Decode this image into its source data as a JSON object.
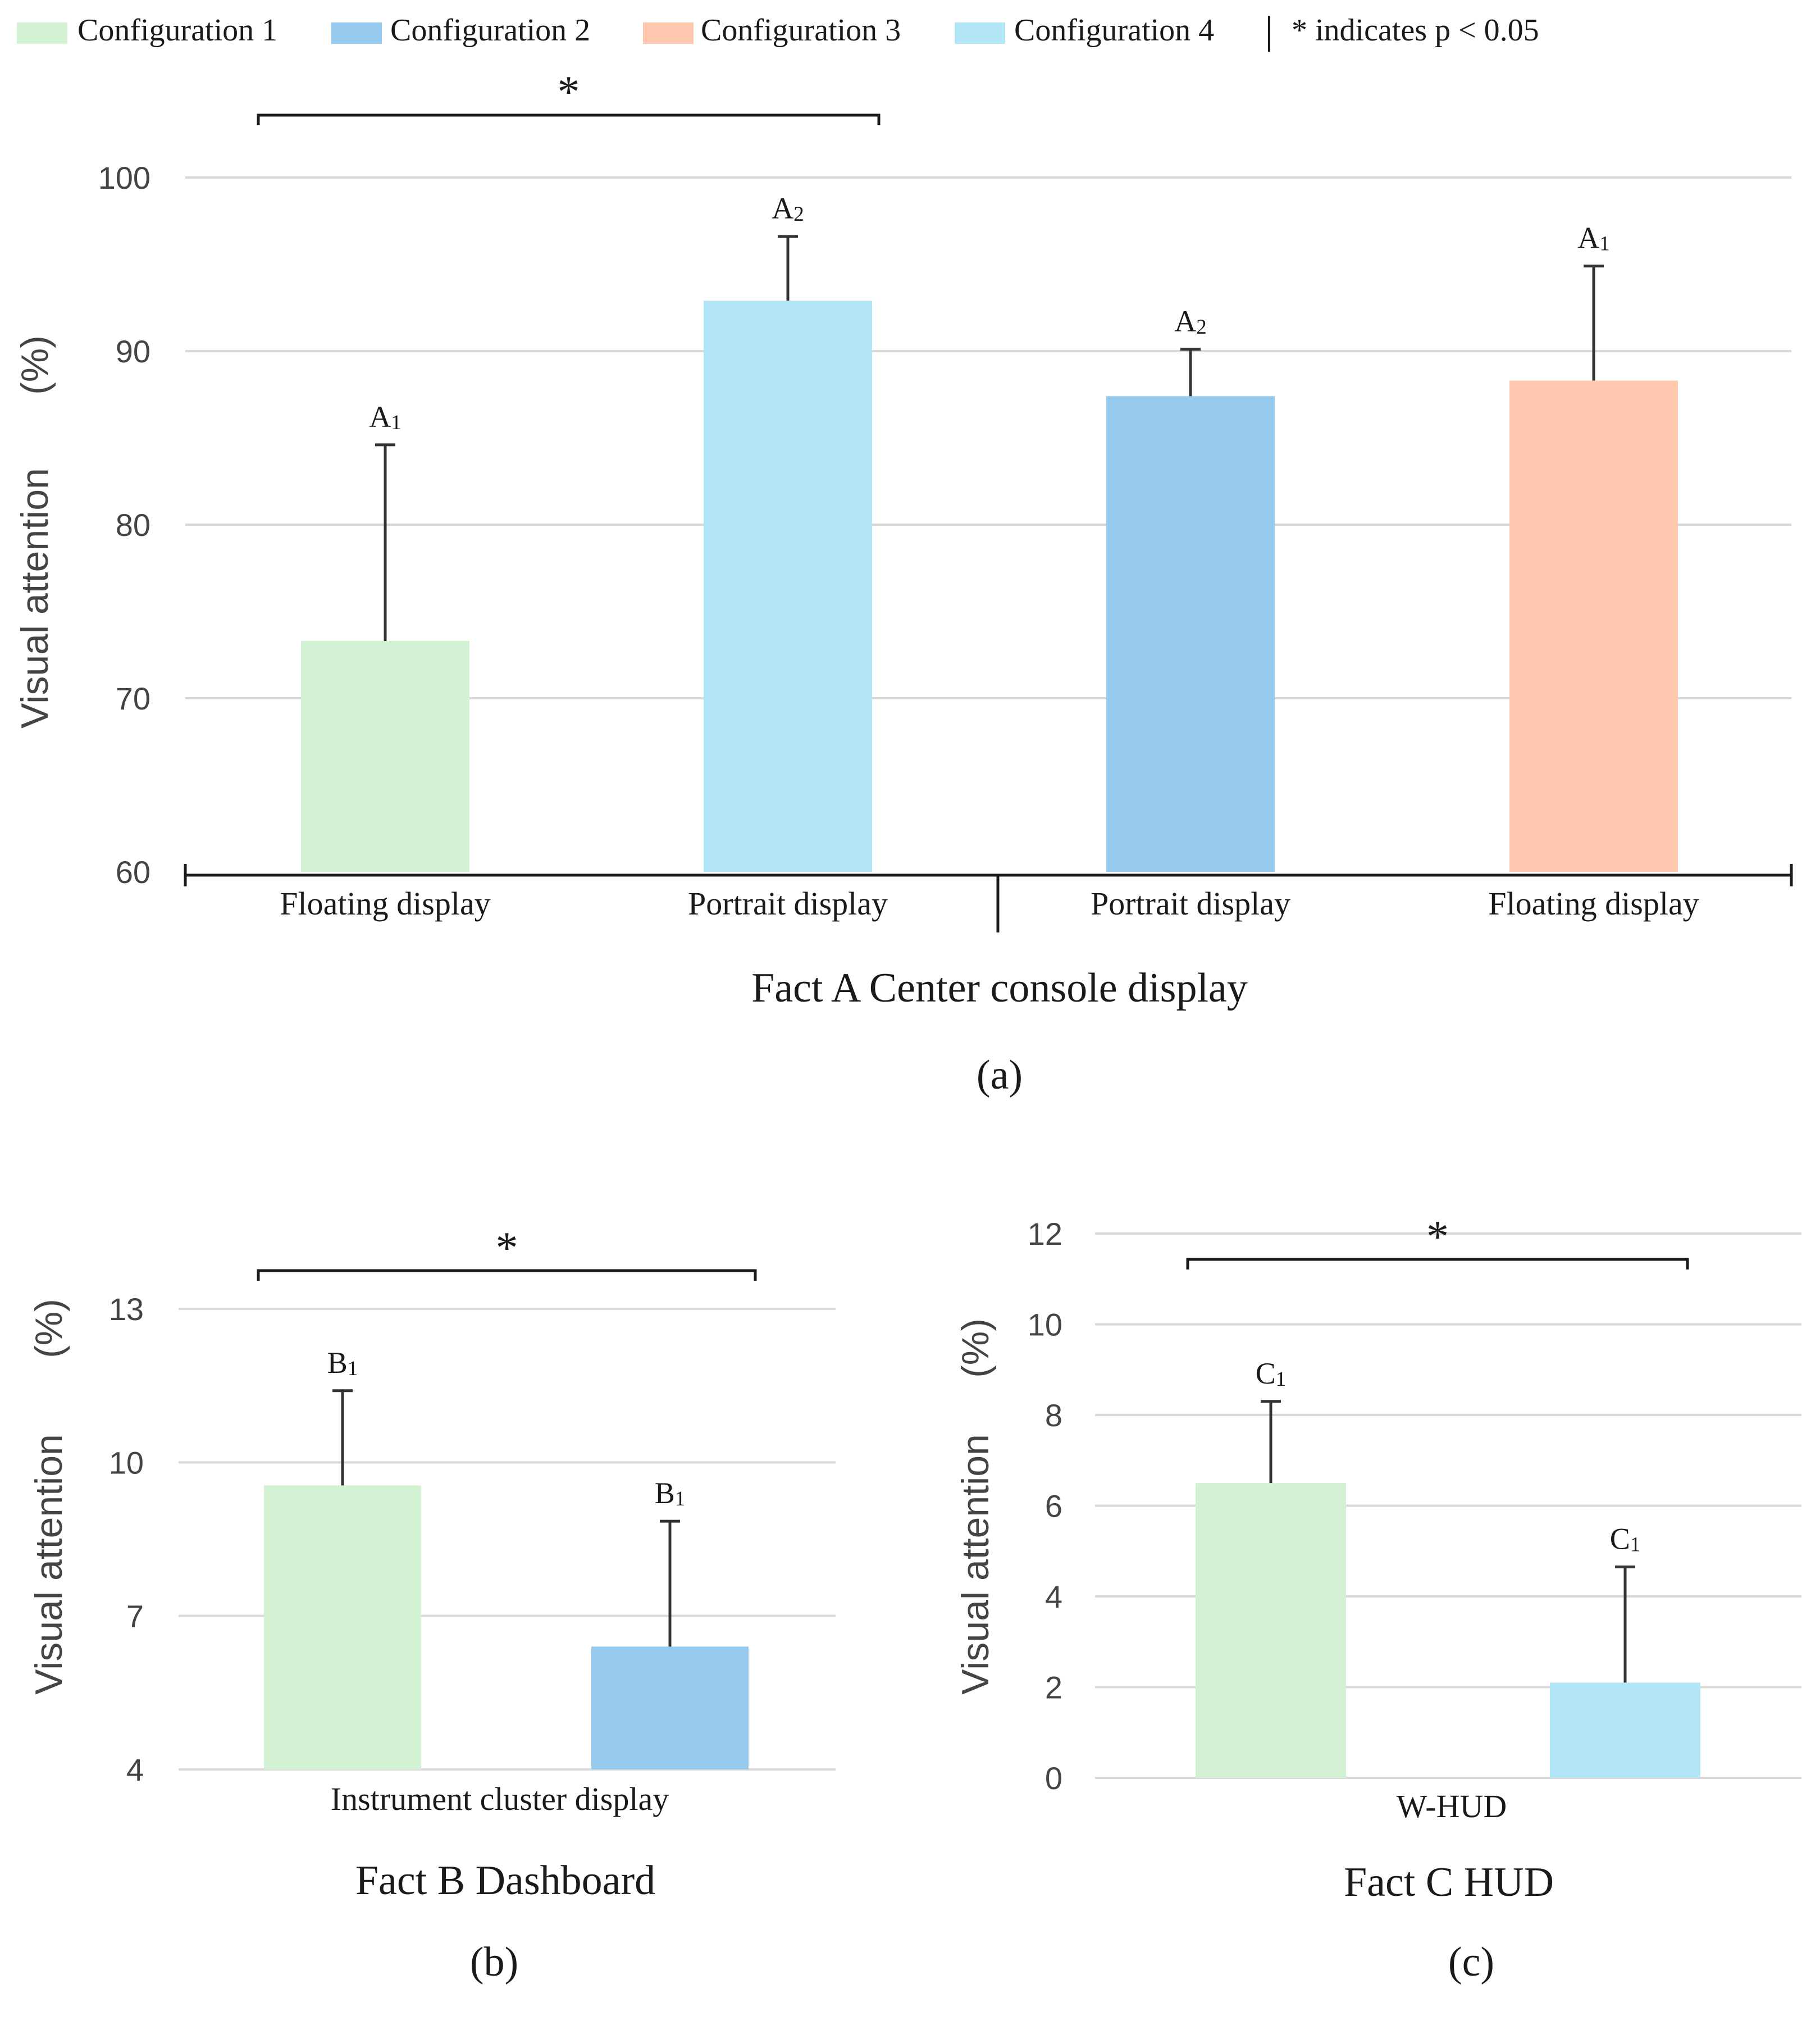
{
  "legend": {
    "items": [
      {
        "label": "Configuration 1",
        "color": "#d3f2d3"
      },
      {
        "label": "Configuration 2",
        "color": "#95c9ee"
      },
      {
        "label": "Configuration 3",
        "color": "#ffc7ad"
      },
      {
        "label": "Configuration 4",
        "color": "#b2e5f6"
      }
    ],
    "significance_note": "* indicates p < 0.05"
  },
  "colors": {
    "text": "#1a1a1a",
    "axis_tick_text": "#444444",
    "grid": "#d9d9d9",
    "axis": "#1a1a1a",
    "error_bar": "#333333"
  },
  "chart_data": [
    {
      "id": "a",
      "type": "bar",
      "panel_label": "(a)",
      "title": "Fact A  Center console display",
      "ylabel": "Visual attention",
      "ylabel_unit": "(%)",
      "ylim": [
        60,
        100
      ],
      "yticks": [
        60,
        70,
        80,
        90,
        100
      ],
      "categories": [
        "Floating display",
        "Portrait display",
        "Portrait display",
        "Floating display"
      ],
      "values": [
        73.3,
        92.9,
        87.4,
        88.3
      ],
      "errors": [
        11.3,
        3.7,
        2.7,
        6.6
      ],
      "bar_configs": [
        "Configuration 1",
        "Configuration 4",
        "Configuration 2",
        "Configuration 3"
      ],
      "bar_letters": [
        "A1",
        "A2",
        "A2",
        "A1"
      ],
      "significance": {
        "from_bar": 0,
        "to_bar": 1,
        "mark": "*"
      },
      "grid": true
    },
    {
      "id": "b",
      "type": "bar",
      "panel_label": "(b)",
      "title": "Fact B Dashboard",
      "xlabel": "Instrument cluster display",
      "ylabel": "Visual attention",
      "ylabel_unit": "(%)",
      "ylim": [
        4,
        13
      ],
      "yticks": [
        4,
        7,
        10,
        13
      ],
      "values": [
        9.55,
        6.4
      ],
      "errors": [
        1.85,
        2.45
      ],
      "bar_configs": [
        "Configuration 1",
        "Configuration 2"
      ],
      "bar_letters": [
        "B1",
        "B1"
      ],
      "significance": {
        "from_bar": 0,
        "to_bar": 1,
        "mark": "*"
      },
      "grid": true
    },
    {
      "id": "c",
      "type": "bar",
      "panel_label": "(c)",
      "title": "Fact C HUD",
      "xlabel": "W-HUD",
      "ylabel": "Visual attention",
      "ylabel_unit": "(%)",
      "ylim": [
        0,
        12
      ],
      "yticks": [
        0,
        2,
        4,
        6,
        8,
        10,
        12
      ],
      "values": [
        6.5,
        2.1
      ],
      "errors": [
        1.8,
        2.55
      ],
      "bar_configs": [
        "Configuration 1",
        "Configuration 4"
      ],
      "bar_letters": [
        "C1",
        "C1"
      ],
      "significance": {
        "from_bar": 0,
        "to_bar": 1,
        "mark": "*"
      },
      "grid": true
    }
  ]
}
